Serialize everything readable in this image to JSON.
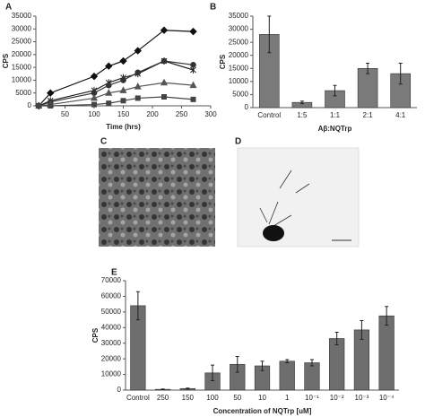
{
  "panel_labels": [
    "A",
    "B",
    "C",
    "D",
    "E"
  ],
  "chart_data": [
    {
      "type": "line",
      "x_label": "Time (hrs)",
      "y_label": "CPS",
      "x": [
        5,
        25,
        100,
        125,
        150,
        175,
        220,
        270
      ],
      "series": [
        {
          "marker": "diamond",
          "color": "#111111",
          "values": [
            0,
            5000,
            11500,
            15500,
            17500,
            21500,
            29500,
            29000
          ]
        },
        {
          "marker": "star",
          "color": "#222222",
          "values": [
            0,
            2000,
            6000,
            9000,
            11000,
            12500,
            17500,
            14000
          ]
        },
        {
          "marker": "circle",
          "color": "#333333",
          "values": [
            0,
            1500,
            5000,
            8000,
            10000,
            13000,
            17500,
            16000
          ]
        },
        {
          "marker": "triangle",
          "color": "#555555",
          "values": [
            0,
            500,
            3000,
            5000,
            6000,
            7500,
            9000,
            8000
          ]
        },
        {
          "marker": "square",
          "color": "#444444",
          "values": [
            0,
            0,
            500,
            1000,
            2000,
            3000,
            3500,
            2500
          ]
        }
      ],
      "xlim": [
        0,
        300
      ],
      "xticks": [
        50,
        100,
        150,
        200,
        250,
        300
      ],
      "ylim": [
        0,
        35000
      ],
      "yticks": [
        0,
        5000,
        10000,
        15000,
        20000,
        25000,
        30000,
        35000
      ]
    },
    {
      "type": "bar",
      "x_label": "Aβ:NQTrp",
      "y_label": "CPS",
      "color": "#7a7a7a",
      "categories": [
        "Control",
        "1:5",
        "1:1",
        "2:1",
        "4:1"
      ],
      "values": [
        28000,
        2000,
        6500,
        15000,
        13000
      ],
      "errors": [
        7000,
        500,
        2000,
        2000,
        4000
      ],
      "ylim": [
        0,
        35000
      ],
      "yticks": [
        0,
        5000,
        10000,
        15000,
        20000,
        25000,
        30000,
        35000
      ]
    },
    {
      "type": "bar",
      "x_label": "Concentration of NQTrp [uM]",
      "y_label": "CPS",
      "color": "#6e6e6e",
      "categories": [
        "Control",
        "250",
        "150",
        "100",
        "50",
        "10",
        "1",
        "10⁻¹",
        "10⁻²",
        "10⁻³",
        "10⁻⁴"
      ],
      "values": [
        54000,
        500,
        1000,
        11000,
        16500,
        15500,
        18500,
        17500,
        33000,
        38500,
        47500
      ],
      "errors": [
        9000,
        200,
        300,
        5000,
        5000,
        3000,
        1000,
        2000,
        4000,
        6000,
        6000
      ],
      "ylim": [
        0,
        70000
      ],
      "yticks": [
        0,
        10000,
        20000,
        30000,
        40000,
        50000,
        60000,
        70000
      ]
    }
  ]
}
